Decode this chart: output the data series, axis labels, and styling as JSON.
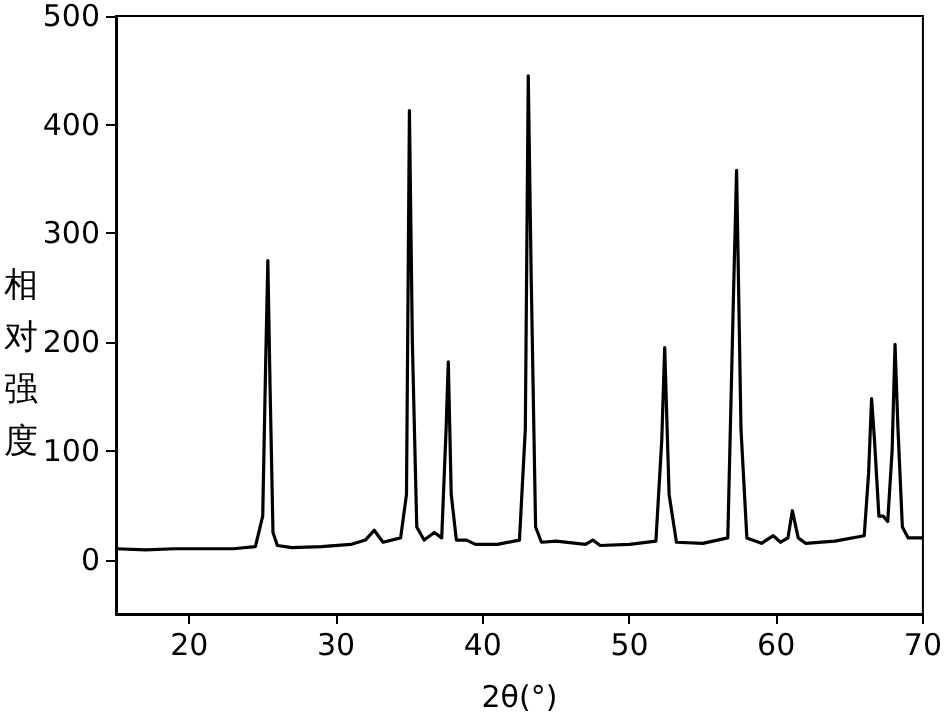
{
  "chart_data": {
    "type": "line",
    "xlabel": "2θ(°)",
    "ylabel": "相对强度",
    "xlim": [
      15,
      70
    ],
    "xticks": [
      20,
      30,
      40,
      50,
      60,
      70
    ],
    "ylim": [
      -50,
      500
    ],
    "yticks": [
      0,
      100,
      200,
      300,
      400,
      500
    ],
    "grid": false,
    "marker": "none",
    "line_style": "solid",
    "series": [
      {
        "color": "#000000",
        "x": [
          15,
          17,
          19,
          21,
          23,
          24.5,
          25,
          25.2,
          25.35,
          25.5,
          25.7,
          26,
          27,
          29,
          31,
          32,
          32.6,
          33.2,
          34.4,
          34.8,
          35.0,
          35.2,
          35.5,
          36,
          36.7,
          37.2,
          37.5,
          37.65,
          37.85,
          38.2,
          38.9,
          39.5,
          41,
          42.5,
          42.9,
          43.1,
          43.3,
          43.6,
          44,
          45,
          47,
          47.5,
          48,
          50,
          51.8,
          52.2,
          52.4,
          52.7,
          53.2,
          55,
          56.7,
          57.1,
          57.3,
          57.6,
          58,
          59,
          59.8,
          60.3,
          60.8,
          61.1,
          61.5,
          62,
          64,
          66,
          66.3,
          66.5,
          66.7,
          67,
          67.3,
          67.6,
          67.9,
          68.1,
          68.3,
          68.6,
          69,
          70
        ],
        "values": [
          10,
          9,
          10,
          10,
          10,
          12,
          40,
          180,
          275,
          160,
          25,
          13,
          11,
          12,
          14,
          18,
          27,
          16,
          20,
          60,
          413,
          200,
          30,
          18,
          25,
          20,
          120,
          182,
          60,
          18,
          18,
          14,
          14,
          18,
          120,
          445,
          260,
          30,
          16,
          17,
          14,
          18,
          13,
          14,
          17,
          110,
          195,
          60,
          16,
          15,
          20,
          250,
          358,
          120,
          20,
          15,
          22,
          16,
          20,
          45,
          20,
          15,
          17,
          22,
          80,
          148,
          110,
          40,
          40,
          35,
          100,
          198,
          120,
          30,
          20,
          20
        ]
      }
    ]
  }
}
